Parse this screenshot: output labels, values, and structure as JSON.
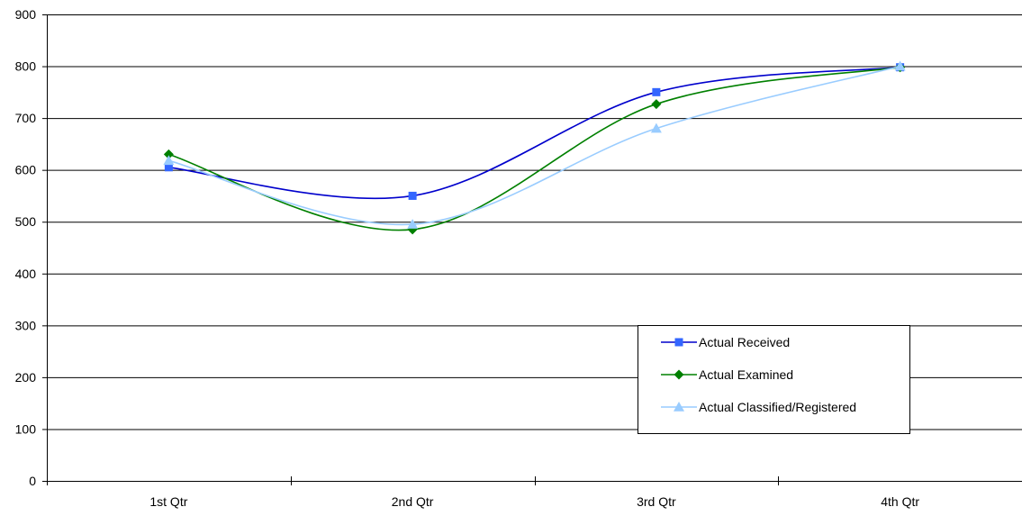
{
  "chart_data": {
    "type": "line",
    "smooth": true,
    "categories": [
      "1st Qtr",
      "2nd Qtr",
      "3rd Qtr",
      "4th Qtr"
    ],
    "ylim": [
      0,
      900
    ],
    "yticks": [
      0,
      100,
      200,
      300,
      400,
      500,
      600,
      700,
      800,
      900
    ],
    "grid": "horizontal",
    "legend": "bottom-right",
    "series": [
      {
        "name": "Actual Received",
        "values": [
          605,
          550,
          750,
          798
        ],
        "color": "#0000cc",
        "marker_color": "#3366ff",
        "marker": "square"
      },
      {
        "name": "Actual Examined",
        "values": [
          630,
          485,
          727,
          798
        ],
        "color": "#008000",
        "marker_color": "#008000",
        "marker": "diamond"
      },
      {
        "name": "Actual Classified/Registered",
        "values": [
          618,
          495,
          680,
          800
        ],
        "color": "#99ccff",
        "marker_color": "#99ccff",
        "marker": "triangle"
      }
    ]
  }
}
